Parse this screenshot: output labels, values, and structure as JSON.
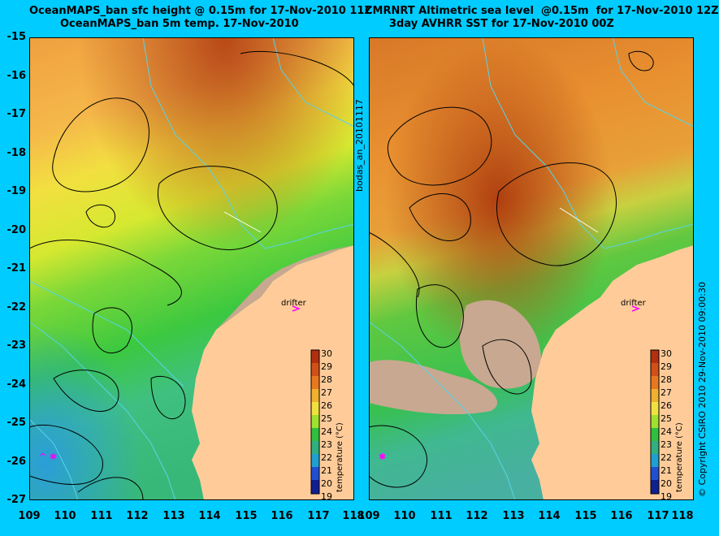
{
  "left_panel": {
    "title_line1": "OceanMAPS_ban sfc height @ 0.15m for 17-Nov-2010 11Z",
    "title_line2": "OceanMAPS_ban 5m temp. 17-Nov-2010",
    "drifter_label": "drifter",
    "colorbar_title": "temperature (°C)"
  },
  "right_panel": {
    "title_line1": "CMRNRT Altimetric sea level  @0.15m  for 17-Nov-2010 12Z",
    "title_line2": "3day AVHRR SST for 17-Nov-2010 00Z",
    "drifter_label": "drifter",
    "colorbar_title": "temperature (°C)"
  },
  "analysis_label": "bodas_an_20101117",
  "copyright": "© Copyright CSIRO 2010   29-Nov-2010 09:00:30",
  "y_ticks": [
    "-15",
    "-16",
    "-17",
    "-18",
    "-19",
    "-20",
    "-21",
    "-22",
    "-23",
    "-24",
    "-25",
    "-26",
    "-27"
  ],
  "x_ticks": [
    "109",
    "110",
    "111",
    "112",
    "113",
    "114",
    "115",
    "116",
    "117",
    "118"
  ],
  "colorbar_ticks": [
    "30",
    "29",
    "28",
    "27",
    "26",
    "25",
    "24",
    "23",
    "22",
    "21",
    "20",
    "19"
  ],
  "colors": {
    "background": "#00ccff",
    "land": "#ffcc99",
    "coast_shelf": "#c8a890",
    "contour": "#000000",
    "isobath": "#55d4e8",
    "drifter_marker": "#ff00ff"
  }
}
